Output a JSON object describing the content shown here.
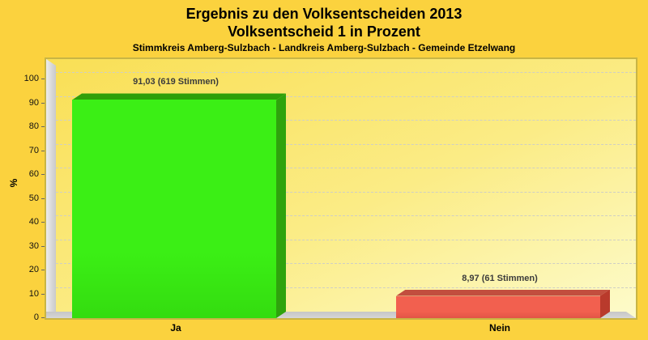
{
  "page": {
    "background": "#FBD23E"
  },
  "header": {
    "title": "Ergebnis zu den Volksentscheiden 2013",
    "subtitle": "Volksentscheid 1 in Prozent",
    "region_line": "Stimmkreis Amberg-Sulzbach - Landkreis Amberg-Sulzbach - Gemeinde Etzelwang"
  },
  "chart_data": {
    "type": "bar",
    "title": "Ergebnis zu den Volksentscheiden 2013",
    "subtitle": "Volksentscheid 1 in Prozent",
    "annotation": "Stimmkreis Amberg-Sulzbach - Landkreis Amberg-Sulzbach - Gemeinde Etzelwang",
    "categories": [
      "Ja",
      "Nein"
    ],
    "values": [
      91.03,
      8.97
    ],
    "value_labels": [
      "91,03 (619 Stimmen)",
      "8,97 (61 Stimmen)"
    ],
    "votes": [
      619,
      61
    ],
    "xlabel": "",
    "ylabel": "%",
    "ylim": [
      0,
      100
    ],
    "yticks": [
      0,
      10,
      20,
      30,
      40,
      50,
      60,
      70,
      80,
      90,
      100
    ],
    "grid": "horizontal-dashed",
    "legend": "none",
    "style": "3d-bars",
    "bars": [
      {
        "category": "Ja",
        "value": 91.03,
        "value_label": "91,03 (619 Stimmen)",
        "front": "#3BEF15",
        "front_shade": "#34DC10",
        "top": "#2F9F09",
        "side": "#2FA30D"
      },
      {
        "category": "Nein",
        "value": 8.97,
        "value_label": "8,97 (61 Stimmen)",
        "front": "#F2604F",
        "front_shade": "#E25546",
        "top": "#C24E3E",
        "side": "#B93A2C"
      }
    ],
    "colors": {
      "page_bg": "#FBD23E",
      "plot_bg_from": "#F9DF55",
      "plot_bg_to": "#FDFBCB",
      "plot_border": "#C8B545",
      "wall": "#D9D9D9",
      "floor": "#CDCDCD",
      "gridline": "#CFCFC4",
      "label_text": "#3C3C3C"
    }
  }
}
